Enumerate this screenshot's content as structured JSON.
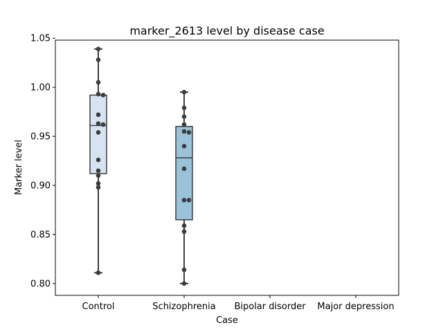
{
  "chart_data": {
    "type": "box",
    "title": "marker_2613 level by disease case",
    "xlabel": "Case",
    "ylabel": "Marker level",
    "categories": [
      "Control",
      "Schizophrenia",
      "Bipolar disorder",
      "Major depression"
    ],
    "ylim": [
      0.788,
      1.048
    ],
    "yticks": [
      0.8,
      0.85,
      0.9,
      0.95,
      1.0,
      1.05
    ],
    "ytick_labels": [
      "0.80",
      "0.85",
      "0.90",
      "0.95",
      "1.00",
      "1.05"
    ],
    "grid": false,
    "boxes": [
      {
        "category": "Control",
        "color": "#d6e4f2",
        "whisker_low": 0.811,
        "q1": 0.912,
        "median": 0.961,
        "q3": 0.992,
        "whisker_high": 1.039,
        "points": [
          1.039,
          1.028,
          1.005,
          0.993,
          0.992,
          0.972,
          0.963,
          0.962,
          0.954,
          0.926,
          0.915,
          0.91,
          0.902,
          0.898,
          0.811
        ]
      },
      {
        "category": "Schizophrenia",
        "color": "#9ac3da",
        "whisker_low": 0.8,
        "q1": 0.865,
        "median": 0.928,
        "q3": 0.96,
        "whisker_high": 0.995,
        "points": [
          0.995,
          0.979,
          0.97,
          0.962,
          0.955,
          0.954,
          0.94,
          0.917,
          0.885,
          0.885,
          0.859,
          0.853,
          0.814,
          0.8
        ]
      },
      {
        "category": "Bipolar disorder",
        "points": []
      },
      {
        "category": "Major depression",
        "points": []
      }
    ]
  }
}
